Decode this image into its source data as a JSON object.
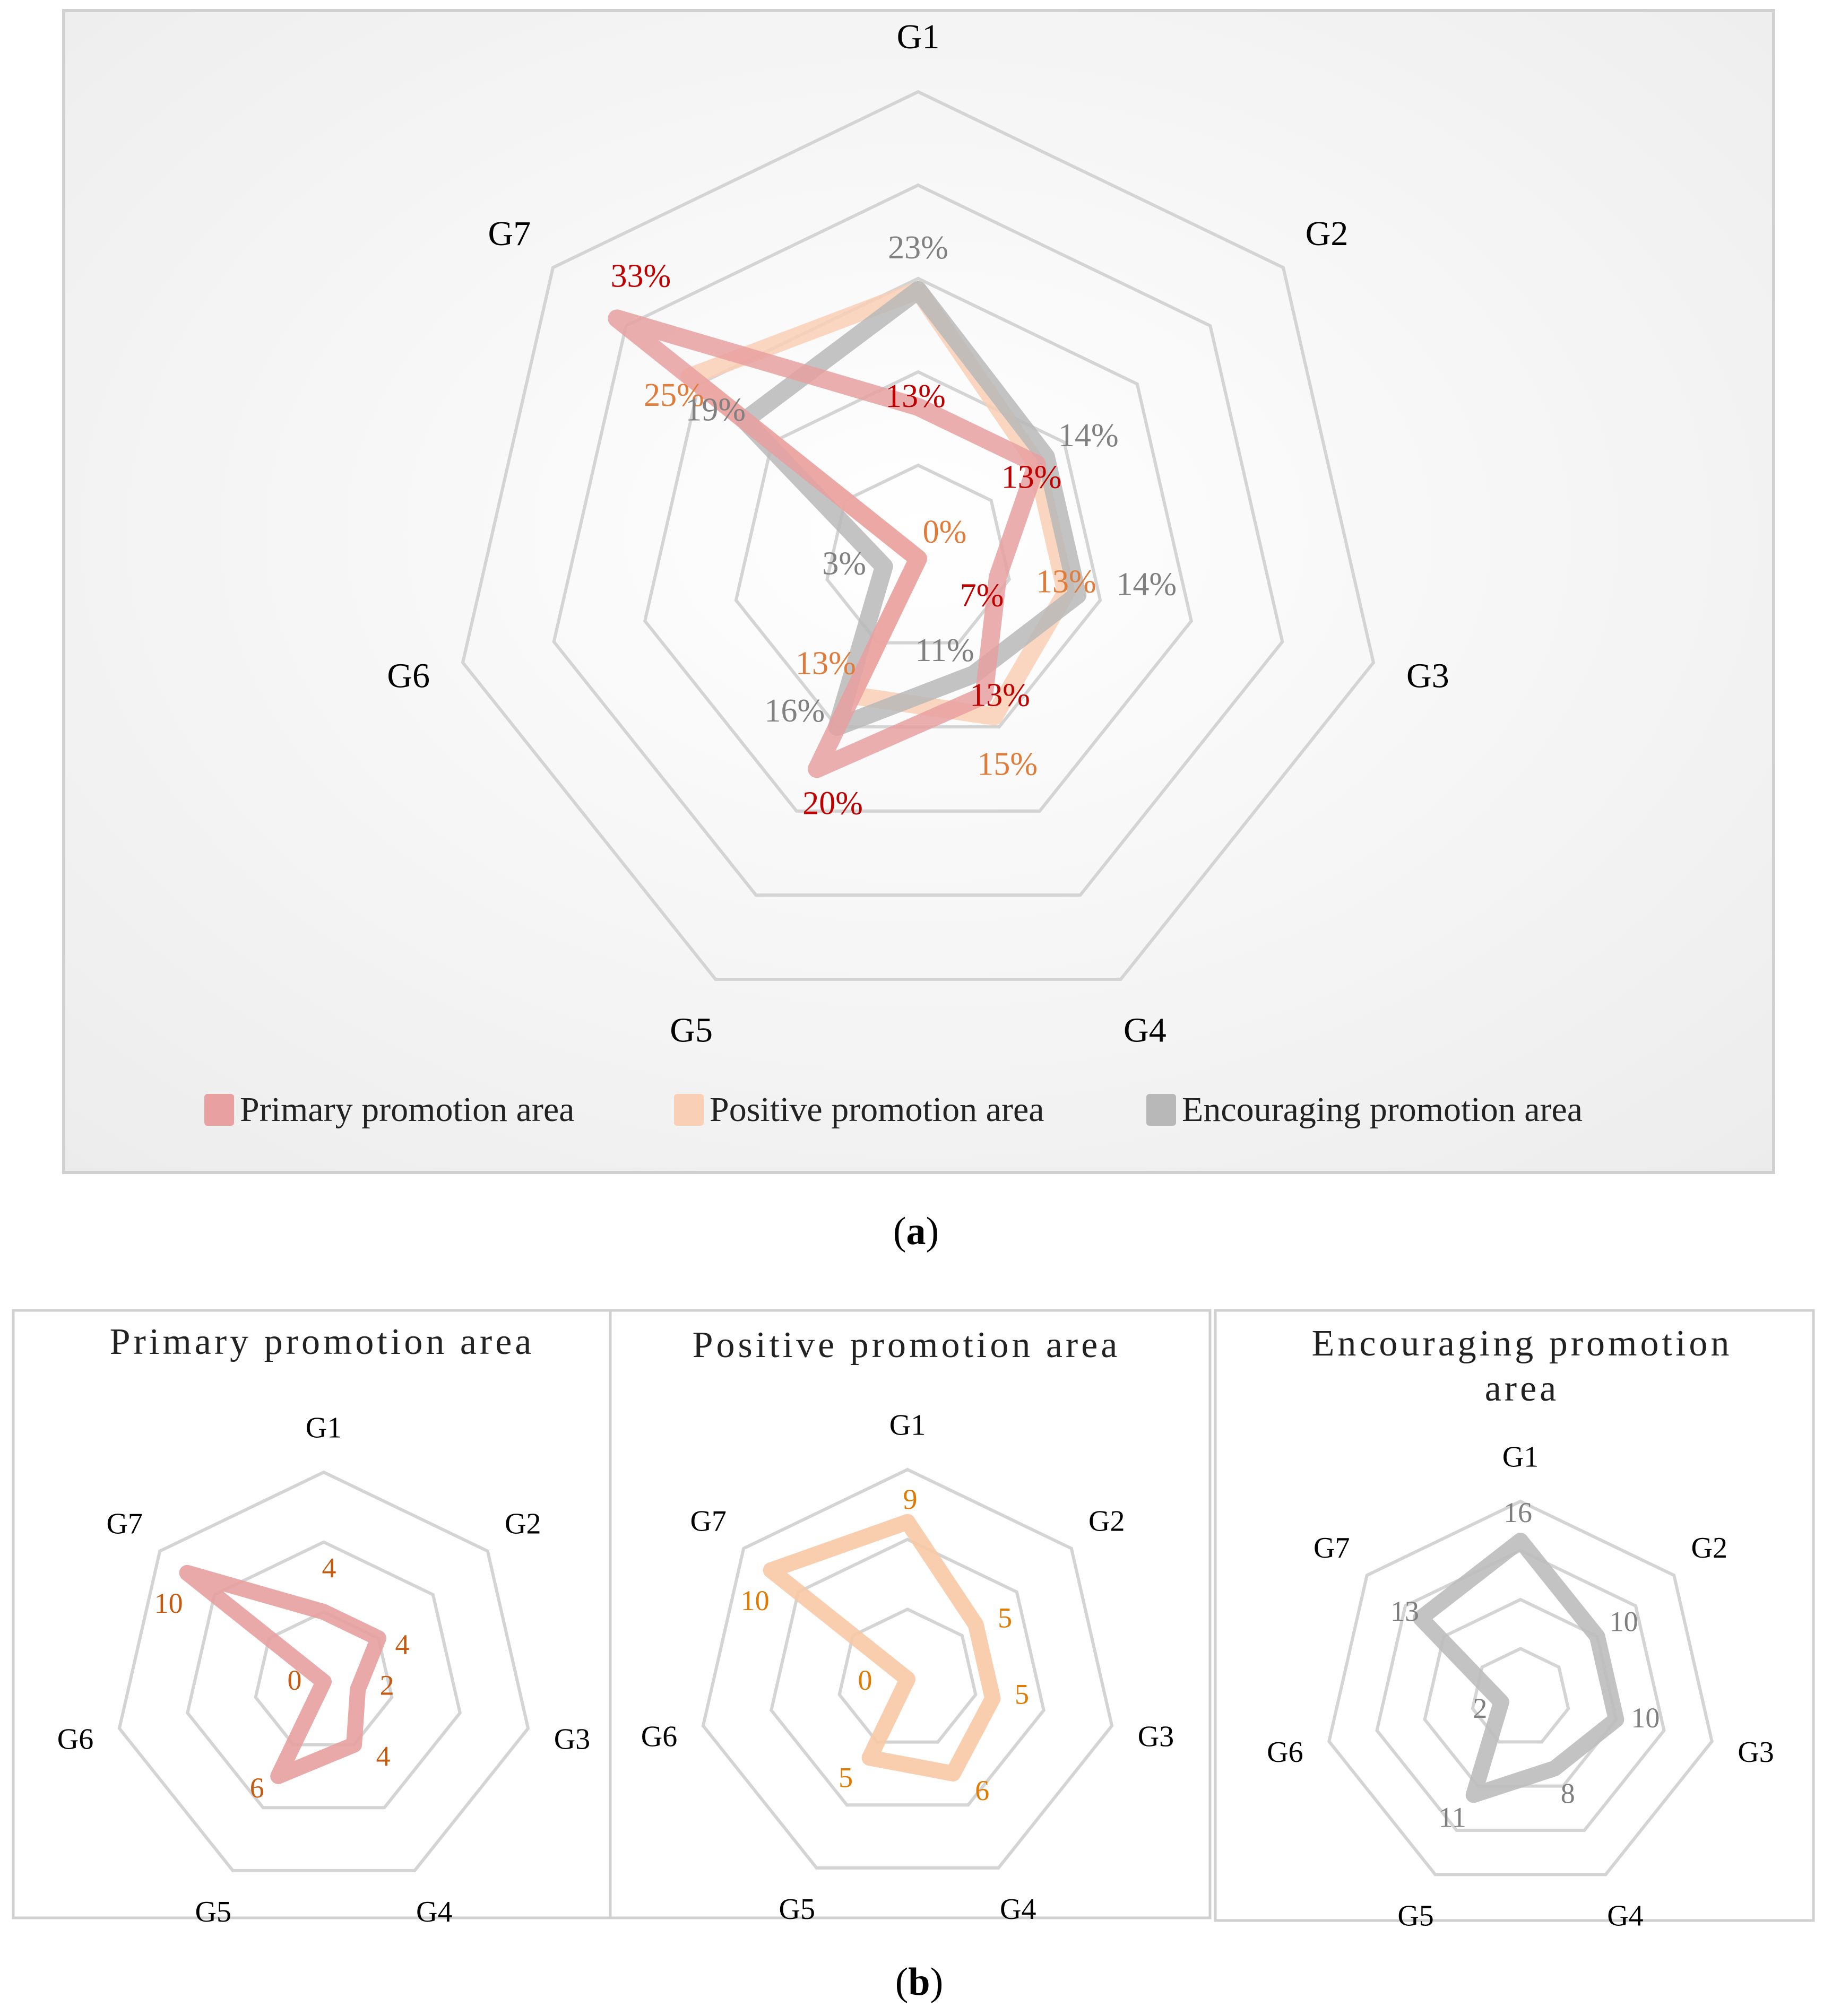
{
  "chart_data": [
    {
      "type": "radar",
      "panel_label": "a",
      "axes": [
        "G1",
        "G2",
        "G3",
        "G4",
        "G5",
        "G6",
        "G7"
      ],
      "rmax": 40,
      "rings": 5,
      "series": [
        {
          "name": "Primary promotion area",
          "color": "#e8a0a0",
          "label_color": "#c00000",
          "values": [
            13,
            13,
            7,
            13,
            20,
            0,
            33
          ],
          "labels": [
            "13%",
            "13%",
            "7%",
            "13%",
            "20%",
            "",
            "33%"
          ]
        },
        {
          "name": "Positive promotion area",
          "color": "#f9cfb5",
          "label_color": "#e07b39",
          "values": [
            23,
            13,
            13,
            15,
            13,
            0,
            25
          ],
          "labels": [
            "",
            "",
            "13%",
            "15%",
            "13%",
            "0%",
            "25%"
          ]
        },
        {
          "name": "Encouraging promotion area",
          "color": "#b8b8b8",
          "label_color": "#808080",
          "values": [
            23,
            14,
            14,
            11,
            16,
            3,
            19
          ],
          "labels": [
            "23%",
            "14%",
            "14%",
            "11%",
            "16%",
            "3%",
            "19%"
          ]
        }
      ]
    },
    {
      "type": "radar",
      "title": "Primary promotion area",
      "axes": [
        "G1",
        "G2",
        "G3",
        "G4",
        "G5",
        "G6",
        "G7"
      ],
      "rmax": 12,
      "rings": 3,
      "values": [
        4,
        4,
        2,
        4,
        6,
        0,
        10
      ],
      "labels": [
        "4",
        "4",
        "2",
        "4",
        "6",
        "0",
        "10"
      ],
      "color": "#e8a0a0",
      "fill": "#fdf0ee",
      "label_color": "#c55a11"
    },
    {
      "type": "radar",
      "title": "Positive promotion area",
      "axes": [
        "G1",
        "G2",
        "G3",
        "G4",
        "G5",
        "G6",
        "G7"
      ],
      "rmax": 12,
      "rings": 3,
      "values": [
        9,
        5,
        5,
        6,
        5,
        0,
        10
      ],
      "labels": [
        "9",
        "5",
        "5",
        "6",
        "5",
        "0",
        "10"
      ],
      "color": "#f7c9a6",
      "fill": "#fff3dc",
      "label_color": "#e07b00"
    },
    {
      "type": "radar",
      "title": "Encouraging promotion area",
      "axes": [
        "G1",
        "G2",
        "G3",
        "G4",
        "G5",
        "G6",
        "G7"
      ],
      "rmax": 20,
      "rings": 4,
      "values": [
        16,
        10,
        10,
        8,
        11,
        2,
        13
      ],
      "labels": [
        "16",
        "10",
        "10",
        "8",
        "11",
        "2",
        "13"
      ],
      "color": "#bdbdbd",
      "fill": "#eeeeee",
      "label_color": "#7f7f7f"
    }
  ],
  "legend": [
    {
      "name": "Primary promotion area",
      "color": "#e8a0a0"
    },
    {
      "name": "Positive promotion area",
      "color": "#f9cfb5"
    },
    {
      "name": "Encouraging promotion area",
      "color": "#b8b8b8"
    }
  ],
  "captions": {
    "a_open": "(",
    "a_letter": "a",
    "a_close": ")",
    "b_open": "(",
    "b_letter": "b",
    "b_close": ")"
  },
  "panel_titles": {
    "primary": "Primary promotion area",
    "positive": "Positive promotion area",
    "encouraging_line1": "Encouraging promotion",
    "encouraging_line2": "area"
  }
}
